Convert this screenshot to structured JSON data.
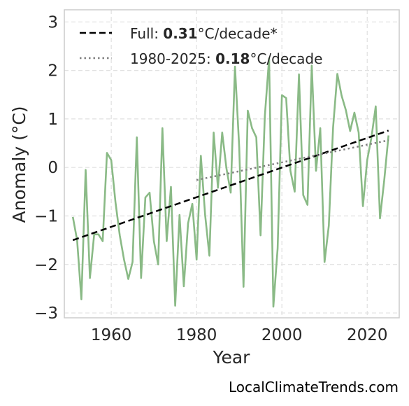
{
  "chart_data": {
    "type": "line",
    "xlabel": "Year",
    "ylabel": "Anomaly (°C)",
    "xlim": [
      1949,
      2027.5
    ],
    "ylim": [
      -3.1,
      3.25
    ],
    "xticks": [
      1960,
      1980,
      2000,
      2020
    ],
    "yticks": [
      -3,
      -2,
      -1,
      0,
      1,
      2,
      3
    ],
    "grid": true,
    "legend_position": "top-left",
    "series": [
      {
        "color": "#8aba86",
        "style": "solid",
        "x": [
          1951,
          1952,
          1953,
          1954,
          1955,
          1956,
          1957,
          1958,
          1959,
          1960,
          1961,
          1962,
          1963,
          1964,
          1965,
          1966,
          1967,
          1968,
          1969,
          1970,
          1971,
          1972,
          1973,
          1974,
          1975,
          1976,
          1977,
          1978,
          1979,
          1980,
          1981,
          1982,
          1983,
          1984,
          1985,
          1986,
          1987,
          1988,
          1989,
          1990,
          1991,
          1992,
          1993,
          1994,
          1995,
          1996,
          1997,
          1998,
          1999,
          2000,
          2001,
          2002,
          2003,
          2004,
          2005,
          2006,
          2007,
          2008,
          2009,
          2010,
          2011,
          2012,
          2013,
          2014,
          2015,
          2016,
          2017,
          2018,
          2019,
          2020,
          2021,
          2022,
          2023,
          2024,
          2025
        ],
        "y": [
          -1.02,
          -1.5,
          -2.72,
          -0.05,
          -2.28,
          -1.38,
          -1.38,
          -1.52,
          0.3,
          0.15,
          -0.72,
          -1.4,
          -1.9,
          -2.3,
          -1.95,
          0.62,
          -2.28,
          -0.62,
          -0.52,
          -1.52,
          -2.0,
          0.81,
          -1.52,
          -0.4,
          -2.85,
          -0.98,
          -2.45,
          -1.15,
          -0.75,
          -1.9,
          0.24,
          -0.98,
          -1.82,
          0.72,
          -0.42,
          0.72,
          -0.02,
          -0.52,
          2.08,
          0.4,
          -2.46,
          1.17,
          0.81,
          0.62,
          -1.4,
          1.06,
          2.25,
          -2.87,
          -1.67,
          1.49,
          1.43,
          -0.07,
          -0.5,
          1.92,
          -0.57,
          -0.77,
          2.1,
          -0.07,
          0.81,
          -1.95,
          -1.2,
          0.82,
          1.93,
          1.48,
          1.18,
          0.75,
          1.13,
          0.72,
          -0.8,
          0.15,
          0.62,
          1.26,
          -1.05,
          -0.26,
          0.66
        ]
      },
      {
        "name": "Full",
        "color": "#000000",
        "style": "dashed",
        "x": [
          1951,
          2025
        ],
        "y": [
          -1.5,
          0.76
        ]
      },
      {
        "name": "1980-2025",
        "color": "#7f7f7f",
        "style": "dotted",
        "x": [
          1980,
          2025
        ],
        "y": [
          -0.26,
          0.56
        ]
      }
    ]
  },
  "legend": [
    {
      "key": "full",
      "prefix": "Full: ",
      "value": "0.31",
      "suffix": "°C/decade*"
    },
    {
      "key": "recent",
      "prefix": "1980-2025: ",
      "value": "0.18",
      "suffix": "°C/decade"
    }
  ],
  "credit": "LocalClimateTrends.com"
}
